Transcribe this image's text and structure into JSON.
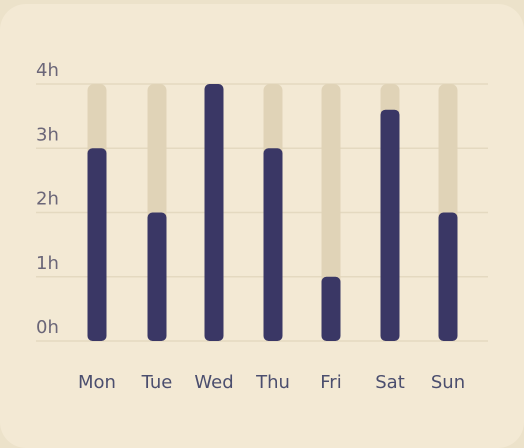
{
  "chart_data": {
    "type": "bar",
    "categories": [
      "Mon",
      "Tue",
      "Wed",
      "Thu",
      "Fri",
      "Sat",
      "Sun"
    ],
    "values": [
      3,
      2,
      4,
      3,
      1,
      3.6,
      2
    ],
    "max": 4,
    "ylim": [
      0,
      4
    ],
    "yticks": [
      0,
      1,
      2,
      3,
      4
    ],
    "ytick_labels": [
      "0h",
      "1h",
      "2h",
      "3h",
      "4h"
    ],
    "grid": true,
    "colors": {
      "bar": "#3a3765",
      "track": "#e0d3b7",
      "grid": "#e4d9c0",
      "card": "#f3e9d4",
      "background": "#ece2ca"
    }
  }
}
